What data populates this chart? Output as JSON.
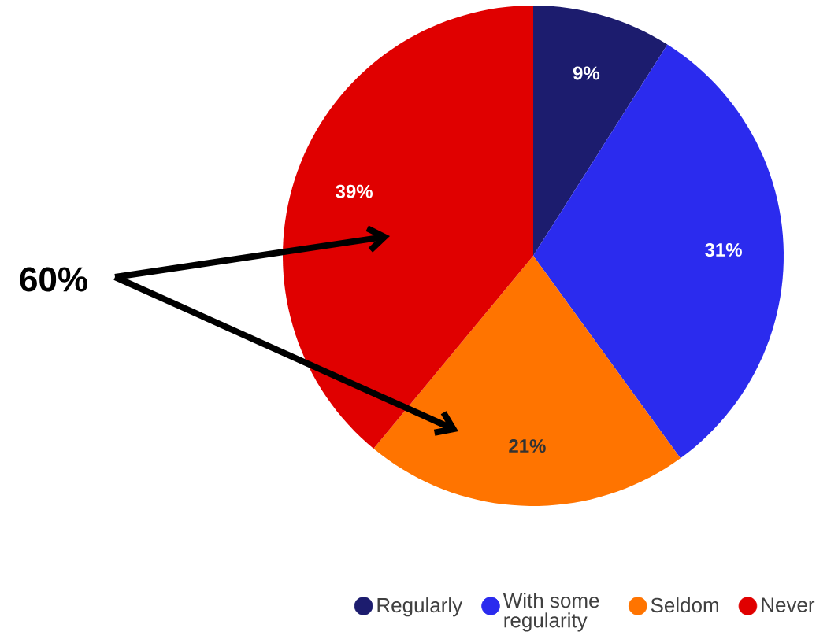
{
  "chart_data": {
    "type": "pie",
    "categories": [
      "Regularly",
      "With some regularity",
      "Seldom",
      "Never"
    ],
    "values": [
      9,
      31,
      21,
      39
    ],
    "value_labels": [
      "9%",
      "31%",
      "21%",
      "39%"
    ],
    "colors": [
      "#1c1c6e",
      "#2b2bee",
      "#ff7400",
      "#e00000"
    ],
    "legend": "bottom",
    "annotations": [
      "60%"
    ]
  }
}
